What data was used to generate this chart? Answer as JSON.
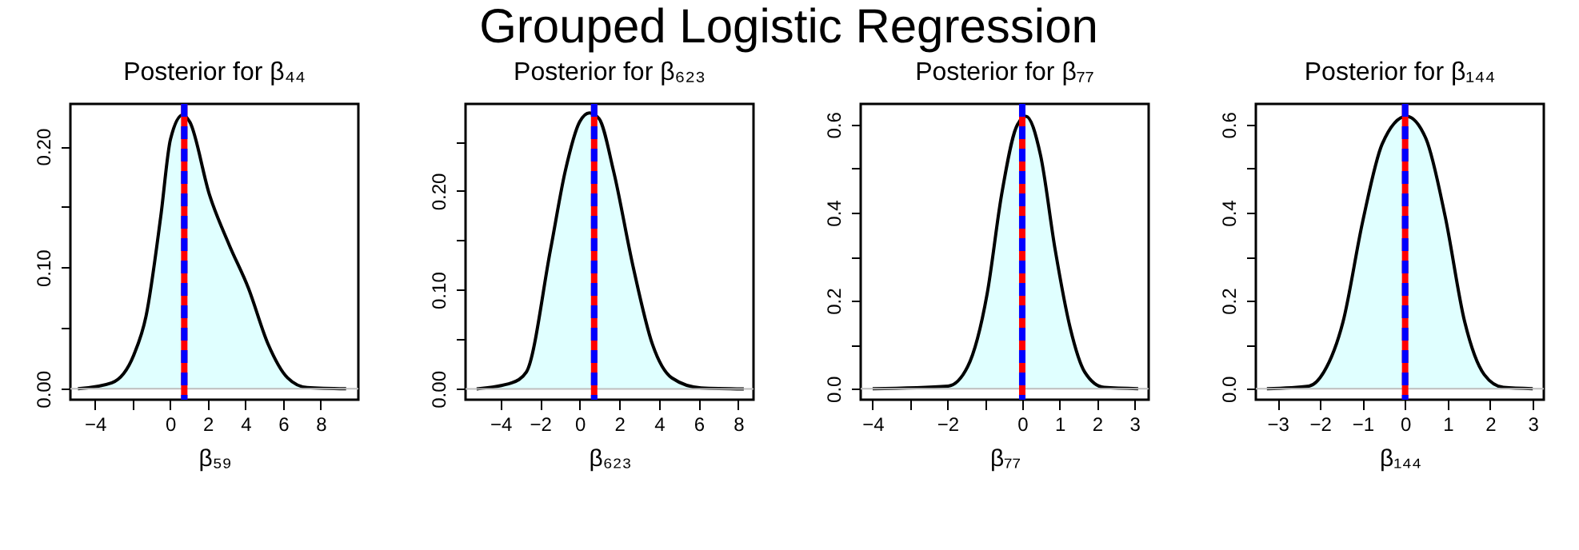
{
  "chart_data": [
    {
      "type": "area",
      "title": "Posterior for β₄₄",
      "xlabel": "β₅₉",
      "annotations": [
        "Grouped Logistic Regression"
      ],
      "x": [
        -4.9,
        -3.1,
        -1.93,
        -1.28,
        -0.5,
        0.02,
        0.67,
        1.05,
        2.09,
        3.13,
        4.16,
        5.2,
        6.24,
        7.28,
        9.35
      ],
      "series": [
        {
          "color": "#e0ffff",
          "values": [
            0,
            0.005,
            0.028,
            0.06,
            0.142,
            0.206,
            0.226,
            0.22,
            0.16,
            0.119,
            0.083,
            0.037,
            0.009,
            0.001,
            0
          ]
        }
      ],
      "xlim": [
        -5.3,
        10.0
      ],
      "ylim": [
        -0.009,
        0.235
      ],
      "xticks": [
        -4,
        {
          "value": -2,
          "label": null
        },
        0,
        2,
        4,
        6,
        8
      ],
      "yticks": [
        {
          "value": 0,
          "label": "0.00"
        },
        {
          "value": 0.05,
          "label": null
        },
        {
          "value": 0.1,
          "label": "0.10"
        },
        {
          "value": 0.15,
          "label": null
        },
        {
          "value": 0.2,
          "label": "0.20"
        }
      ],
      "ref_lines": [
        {
          "axis": "y",
          "value": 0,
          "color": "#bebebe",
          "line_style": "solid"
        },
        {
          "axis": "x",
          "value": 0.75,
          "color": "#ff0000",
          "line_style": "solid"
        },
        {
          "axis": "x",
          "value": 0.75,
          "color": "#0000ff",
          "line_style": "dashed"
        }
      ],
      "grid": false
    },
    {
      "type": "area",
      "title": "Posterior for β₆₂₃",
      "xlabel": "β₆₂₃",
      "x": [
        -5.2,
        -3.43,
        -2.69,
        -1.47,
        -0.73,
        0,
        0.49,
        0.98,
        1.71,
        2.69,
        3.67,
        4.65,
        6.12,
        8.28
      ],
      "series": [
        {
          "color": "#e0ffff",
          "values": [
            0,
            0.006,
            0.017,
            0.141,
            0.22,
            0.27,
            0.279,
            0.273,
            0.22,
            0.124,
            0.045,
            0.011,
            0.001,
            0
          ]
        }
      ],
      "xlim": [
        -5.76,
        8.77
      ],
      "ylim": [
        -0.011,
        0.288
      ],
      "xticks": [
        -4,
        -2,
        0,
        2,
        4,
        6,
        8
      ],
      "yticks": [
        {
          "value": 0,
          "label": "0.00"
        },
        {
          "value": 0.05,
          "label": null
        },
        {
          "value": 0.1,
          "label": "0.10"
        },
        {
          "value": 0.15,
          "label": null
        },
        {
          "value": 0.2,
          "label": "0.20"
        },
        {
          "value": 0.25,
          "label": null
        }
      ],
      "ref_lines": [
        {
          "axis": "y",
          "value": 0,
          "color": "#bebebe",
          "line_style": "solid"
        },
        {
          "axis": "x",
          "value": 0.73,
          "color": "#ff0000",
          "line_style": "solid"
        },
        {
          "axis": "x",
          "value": 0.73,
          "color": "#0000ff",
          "line_style": "dashed"
        }
      ],
      "grid": false
    },
    {
      "type": "area",
      "title": "Posterior for β₇₇",
      "xlabel": "β₇₇",
      "x": [
        -4.0,
        -1.98,
        -1.46,
        -0.94,
        -0.55,
        -0.16,
        0.1,
        0.49,
        0.88,
        1.28,
        1.67,
        2.19,
        3.1
      ],
      "series": [
        {
          "color": "#e0ffff",
          "values": [
            0,
            0.006,
            0.05,
            0.215,
            0.442,
            0.594,
            0.619,
            0.53,
            0.316,
            0.139,
            0.038,
            0.003,
            0
          ]
        }
      ],
      "xlim": [
        -4.32,
        3.38
      ],
      "ylim": [
        -0.025,
        0.647
      ],
      "xticks": [
        -4,
        {
          "value": -3,
          "label": null
        },
        -2,
        {
          "value": -1,
          "label": null
        },
        0,
        1,
        2,
        3
      ],
      "yticks": [
        {
          "value": 0,
          "label": "0.0"
        },
        {
          "value": 0.1,
          "label": null
        },
        {
          "value": 0.2,
          "label": "0.2"
        },
        {
          "value": 0.3,
          "label": null
        },
        {
          "value": 0.4,
          "label": "0.4"
        },
        {
          "value": 0.5,
          "label": null
        },
        {
          "value": 0.6,
          "label": "0.6"
        }
      ],
      "ref_lines": [
        {
          "axis": "y",
          "value": 0,
          "color": "#bebebe",
          "line_style": "solid"
        },
        {
          "axis": "x",
          "value": 0.0,
          "color": "#ff0000",
          "line_style": "solid"
        },
        {
          "axis": "x",
          "value": 0.0,
          "color": "#0000ff",
          "line_style": "dashed"
        }
      ],
      "grid": false
    },
    {
      "type": "area",
      "title": "Posterior for β₁₄₄",
      "xlabel": "β₁₄₄",
      "x": [
        -3.25,
        -2.26,
        -1.91,
        -1.46,
        -1.0,
        -0.54,
        0.03,
        0.49,
        0.94,
        1.4,
        1.86,
        2.31,
        3.0
      ],
      "series": [
        {
          "color": "#e0ffff",
          "values": [
            0,
            0.006,
            0.038,
            0.152,
            0.379,
            0.556,
            0.619,
            0.568,
            0.392,
            0.152,
            0.032,
            0.003,
            0
          ]
        }
      ],
      "xlim": [
        -3.51,
        3.26
      ],
      "ylim": [
        -0.025,
        0.647
      ],
      "xticks": [
        -3,
        -2,
        -1,
        0,
        1,
        2,
        3
      ],
      "yticks": [
        {
          "value": 0,
          "label": "0.0"
        },
        {
          "value": 0.1,
          "label": null
        },
        {
          "value": 0.2,
          "label": "0.2"
        },
        {
          "value": 0.3,
          "label": null
        },
        {
          "value": 0.4,
          "label": "0.4"
        },
        {
          "value": 0.5,
          "label": null
        },
        {
          "value": 0.6,
          "label": "0.6"
        }
      ],
      "ref_lines": [
        {
          "axis": "y",
          "value": 0,
          "color": "#bebebe",
          "line_style": "solid"
        },
        {
          "axis": "x",
          "value": 0.0,
          "color": "#ff0000",
          "line_style": "solid"
        },
        {
          "axis": "x",
          "value": 0.0,
          "color": "#0000ff",
          "line_style": "dashed"
        }
      ],
      "grid": false
    }
  ]
}
